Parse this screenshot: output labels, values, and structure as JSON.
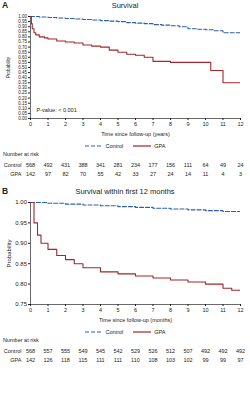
{
  "chart_data": [
    {
      "type": "line",
      "panel": "A",
      "title": "Survival",
      "xlabel": "Time since follow-up (years)",
      "ylabel": "Probability",
      "xlim": [
        0,
        12
      ],
      "xticks": [
        0,
        1,
        2,
        3,
        4,
        5,
        6,
        7,
        8,
        9,
        10,
        11,
        12
      ],
      "ylim": [
        0,
        1
      ],
      "yticks": [
        {
          "value": 0,
          "label": "0.00"
        },
        {
          "value": 0.05,
          "label": "0.05"
        },
        {
          "value": 0.1,
          "label": "0.10"
        },
        {
          "value": 0.15,
          "label": "0.15"
        },
        {
          "value": 0.2,
          "label": "0.20"
        },
        {
          "value": 0.25,
          "label": "0.25"
        },
        {
          "value": 0.3,
          "label": "0.30"
        },
        {
          "value": 0.35,
          "label": "0.35"
        },
        {
          "value": 0.4,
          "label": "0.40"
        },
        {
          "value": 0.45,
          "label": "0.45"
        },
        {
          "value": 0.5,
          "label": "0.50"
        },
        {
          "value": 0.55,
          "label": "0.55"
        },
        {
          "value": 0.6,
          "label": "0.60"
        },
        {
          "value": 0.65,
          "label": "0.65"
        },
        {
          "value": 0.7,
          "label": "0.70"
        },
        {
          "value": 0.75,
          "label": "0.75"
        },
        {
          "value": 0.8,
          "label": "0.80"
        },
        {
          "value": 0.85,
          "label": "0.85"
        },
        {
          "value": 0.9,
          "label": "0.90"
        },
        {
          "value": 0.95,
          "label": "0.95"
        },
        {
          "value": 1,
          "label": "1.00"
        }
      ],
      "legend": "bottom",
      "annotation": "P-value: < 0.001",
      "at_risk_title": "Number at risk",
      "at_risk_x": [
        0,
        1,
        2,
        3,
        4,
        5,
        6,
        7,
        8,
        9,
        10,
        11,
        12
      ],
      "series": [
        {
          "name": "Control",
          "color": "#2f5ea8",
          "line_style": "dashed",
          "x": [
            0,
            0.5,
            1,
            1.5,
            2,
            2.5,
            3,
            3.5,
            4,
            4.5,
            5,
            5.5,
            6,
            6.5,
            7,
            7.5,
            8,
            8.5,
            9,
            9.5,
            10,
            10.5,
            11,
            11.5,
            12
          ],
          "values": [
            1,
            0.995,
            0.99,
            0.985,
            0.98,
            0.975,
            0.97,
            0.965,
            0.96,
            0.955,
            0.95,
            0.94,
            0.935,
            0.93,
            0.92,
            0.915,
            0.91,
            0.9,
            0.88,
            0.875,
            0.87,
            0.86,
            0.84,
            0.84,
            0.84
          ],
          "at_risk": [
            568,
            492,
            431,
            388,
            341,
            281,
            234,
            177,
            156,
            111,
            64,
            49,
            24
          ]
        },
        {
          "name": "GPA",
          "color": "#a3262a",
          "line_style": "solid",
          "x": [
            0,
            0.05,
            0.1,
            0.2,
            0.3,
            0.5,
            0.8,
            1,
            1.5,
            2,
            2.5,
            3,
            3.5,
            4,
            4.5,
            5,
            5.5,
            6,
            6.5,
            7,
            8,
            9,
            10,
            10.3,
            10.8,
            11,
            12
          ],
          "values": [
            1,
            0.93,
            0.88,
            0.84,
            0.82,
            0.8,
            0.79,
            0.78,
            0.76,
            0.75,
            0.74,
            0.72,
            0.71,
            0.7,
            0.67,
            0.65,
            0.63,
            0.62,
            0.6,
            0.56,
            0.55,
            0.55,
            0.55,
            0.47,
            0.47,
            0.35,
            0.35
          ],
          "at_risk": [
            142,
            97,
            82,
            70,
            55,
            42,
            33,
            27,
            24,
            14,
            11,
            4,
            3
          ]
        }
      ]
    },
    {
      "type": "line",
      "panel": "B",
      "title": "Survival within first 12 months",
      "xlabel": "Time since follow-up (months)",
      "ylabel": "Probability",
      "xlim": [
        0,
        12
      ],
      "xticks": [
        0,
        1,
        2,
        3,
        4,
        5,
        6,
        7,
        8,
        9,
        10,
        11,
        12
      ],
      "ylim": [
        0.75,
        1
      ],
      "yticks": [
        {
          "value": 0.75,
          "label": "0.75"
        },
        {
          "value": 0.8,
          "label": "0.80"
        },
        {
          "value": 0.85,
          "label": "0.85"
        },
        {
          "value": 0.9,
          "label": "0.90"
        },
        {
          "value": 0.95,
          "label": "0.95"
        },
        {
          "value": 1,
          "label": "1.00"
        }
      ],
      "legend": "bottom",
      "at_risk_title": "Number at risk",
      "at_risk_x": [
        0,
        1,
        2,
        3,
        4,
        5,
        6,
        7,
        8,
        9,
        10,
        11,
        12
      ],
      "series": [
        {
          "name": "Control",
          "color": "#2f5ea8",
          "line_style": "dashed",
          "x": [
            0,
            1,
            2,
            3,
            4,
            5,
            6,
            7,
            8,
            9,
            10,
            11,
            12
          ],
          "values": [
            1,
            0.998,
            0.996,
            0.994,
            0.992,
            0.99,
            0.988,
            0.986,
            0.984,
            0.982,
            0.98,
            0.978,
            0.976
          ],
          "at_risk": [
            568,
            557,
            555,
            549,
            545,
            542,
            529,
            526,
            512,
            507,
            492,
            492,
            492
          ]
        },
        {
          "name": "GPA",
          "color": "#a3262a",
          "line_style": "solid",
          "x": [
            0,
            0.2,
            0.4,
            0.6,
            1,
            1.5,
            2,
            2.5,
            3,
            4,
            5,
            6,
            7,
            8,
            9,
            10,
            11,
            11.5,
            12
          ],
          "values": [
            1,
            0.95,
            0.92,
            0.9,
            0.885,
            0.87,
            0.86,
            0.85,
            0.84,
            0.83,
            0.825,
            0.82,
            0.815,
            0.81,
            0.805,
            0.8,
            0.79,
            0.785,
            0.785
          ],
          "at_risk": [
            142,
            126,
            118,
            115,
            111,
            111,
            110,
            108,
            103,
            102,
            99,
            99,
            97
          ]
        }
      ]
    }
  ]
}
